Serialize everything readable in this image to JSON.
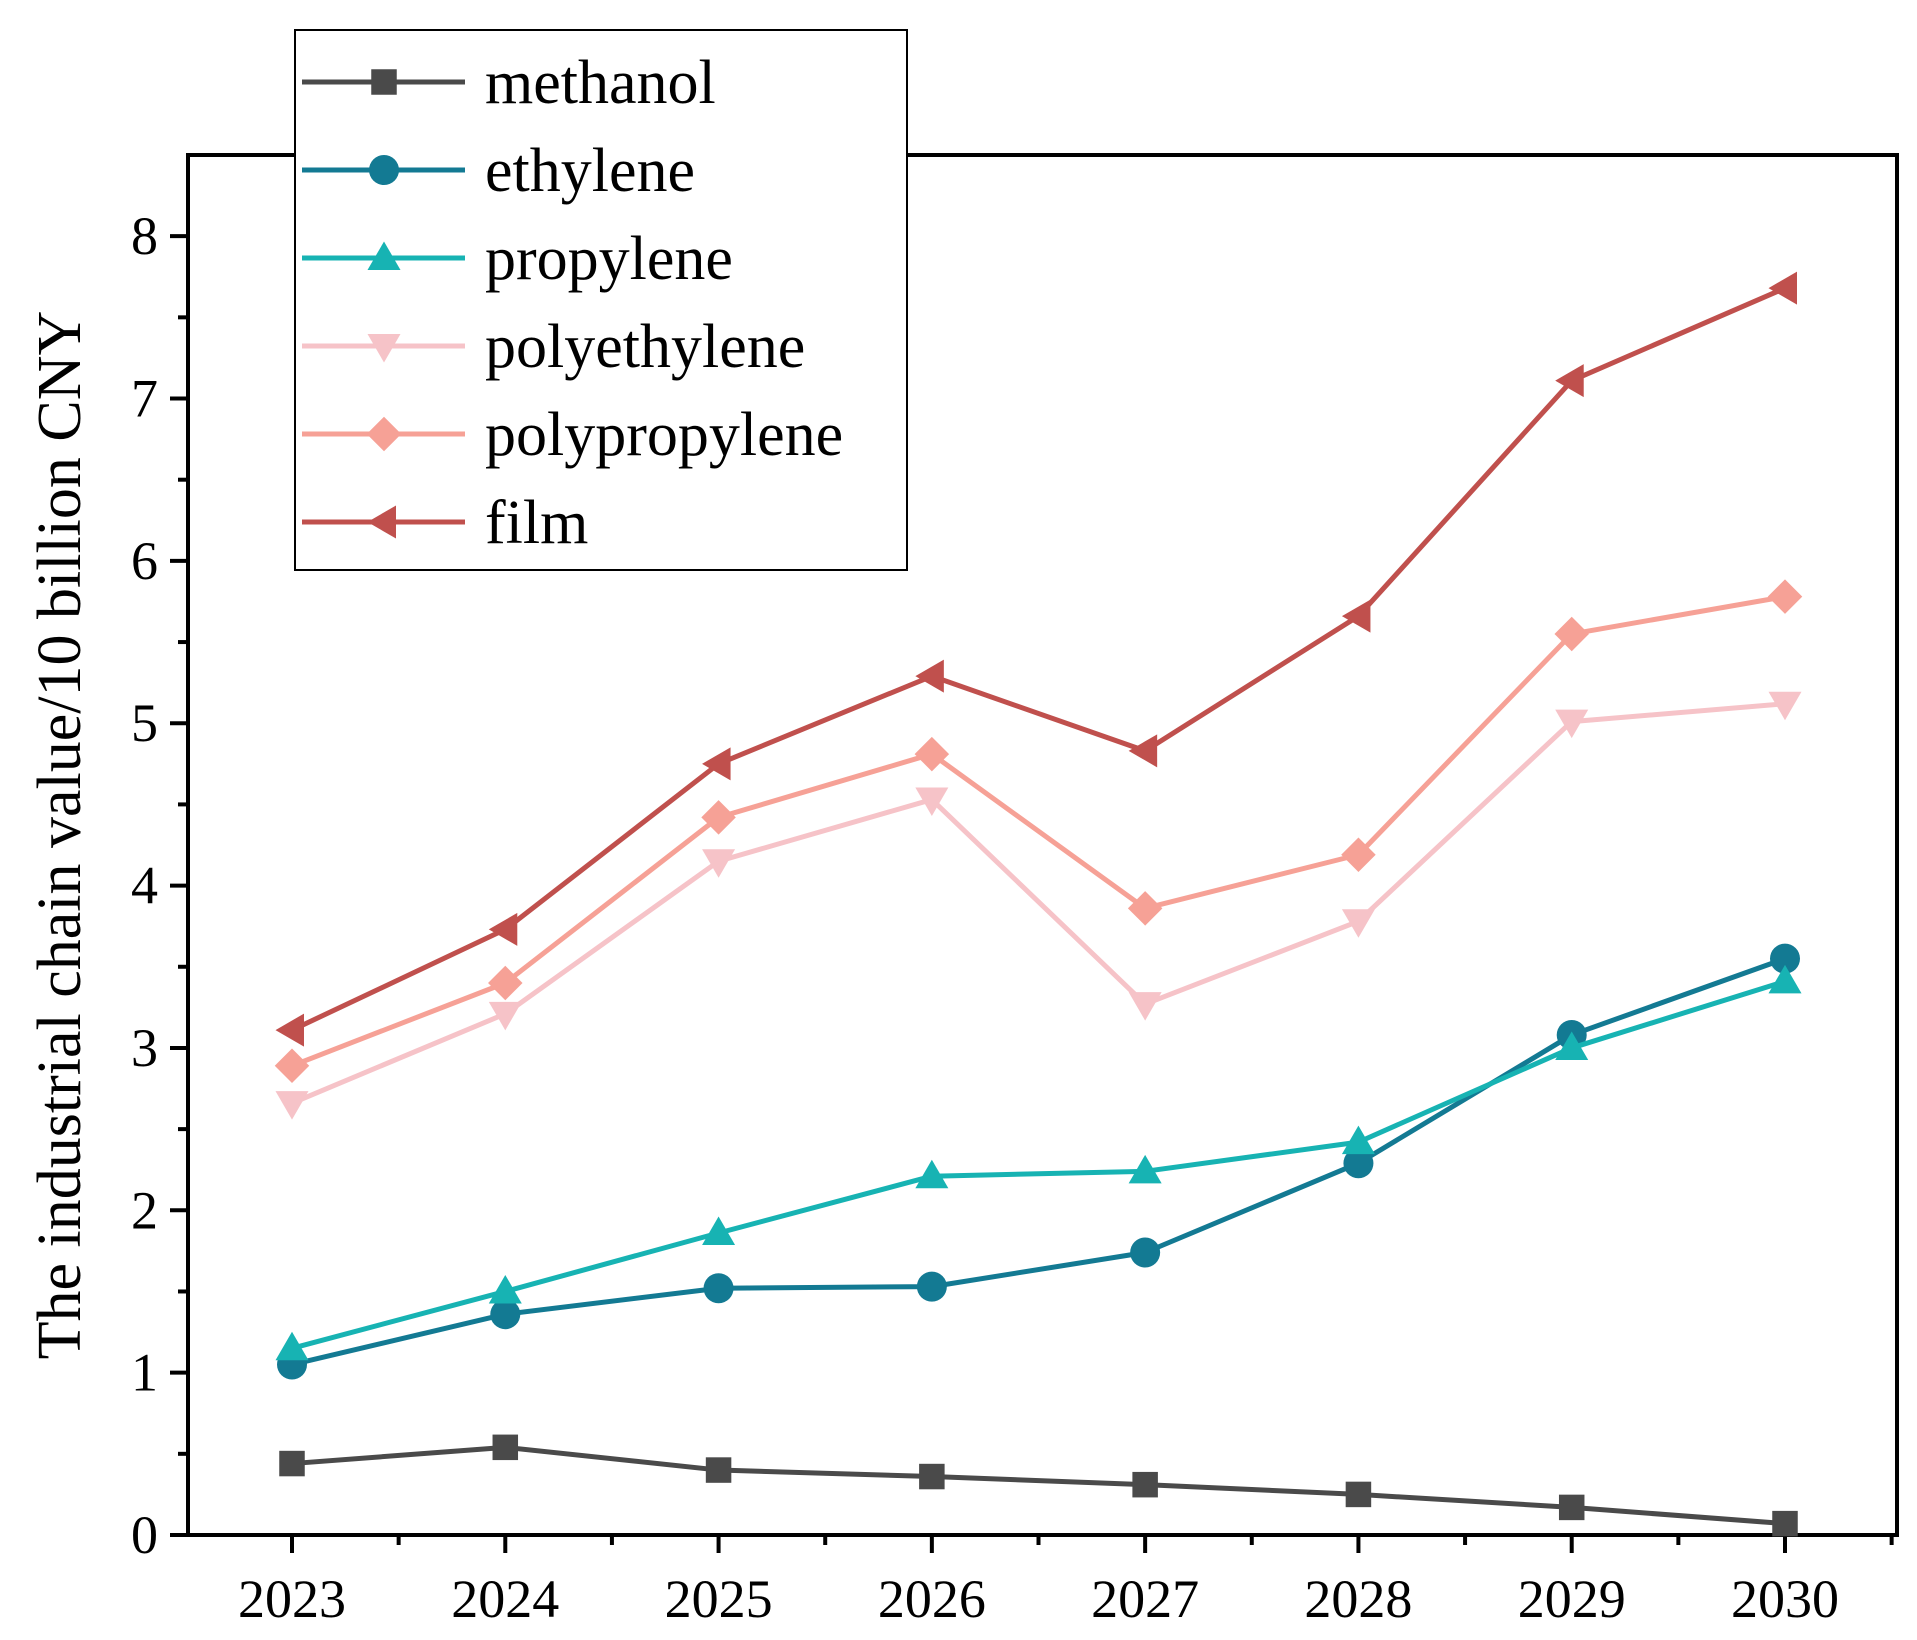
{
  "chart_data": {
    "type": "line",
    "title": "",
    "xlabel": "",
    "ylabel": "The industrial chain value/10 billion CNY",
    "categories": [
      "2023",
      "2024",
      "2025",
      "2026",
      "2027",
      "2028",
      "2029",
      "2030"
    ],
    "ylim": [
      0,
      8.5
    ],
    "yticks": [
      "0",
      "1",
      "2",
      "3",
      "4",
      "5",
      "6",
      "7",
      "8"
    ],
    "grid": false,
    "legend_position": "top-left",
    "series": [
      {
        "name": "methanol",
        "color": "#4a4a4a",
        "marker": "square",
        "values": [
          0.44,
          0.54,
          0.4,
          0.36,
          0.31,
          0.25,
          0.17,
          0.07
        ]
      },
      {
        "name": "ethylene",
        "color": "#137a93",
        "marker": "circle",
        "values": [
          1.05,
          1.36,
          1.52,
          1.53,
          1.74,
          2.29,
          3.08,
          3.55
        ]
      },
      {
        "name": "propylene",
        "color": "#17b3b3",
        "marker": "triangle-up",
        "values": [
          1.15,
          1.5,
          1.86,
          2.21,
          2.24,
          2.42,
          3.0,
          3.41
        ]
      },
      {
        "name": "polyethylene",
        "color": "#f6c3c8",
        "marker": "triangle-down",
        "values": [
          2.66,
          3.21,
          4.15,
          4.53,
          3.27,
          3.78,
          5.01,
          5.12
        ]
      },
      {
        "name": "polypropylene",
        "color": "#f6a196",
        "marker": "diamond",
        "values": [
          2.89,
          3.4,
          4.42,
          4.81,
          3.86,
          4.19,
          5.55,
          5.78
        ]
      },
      {
        "name": "film",
        "color": "#c0504d",
        "marker": "triangle-left",
        "values": [
          3.11,
          3.73,
          4.75,
          5.29,
          4.83,
          5.66,
          7.11,
          7.68
        ]
      }
    ]
  }
}
